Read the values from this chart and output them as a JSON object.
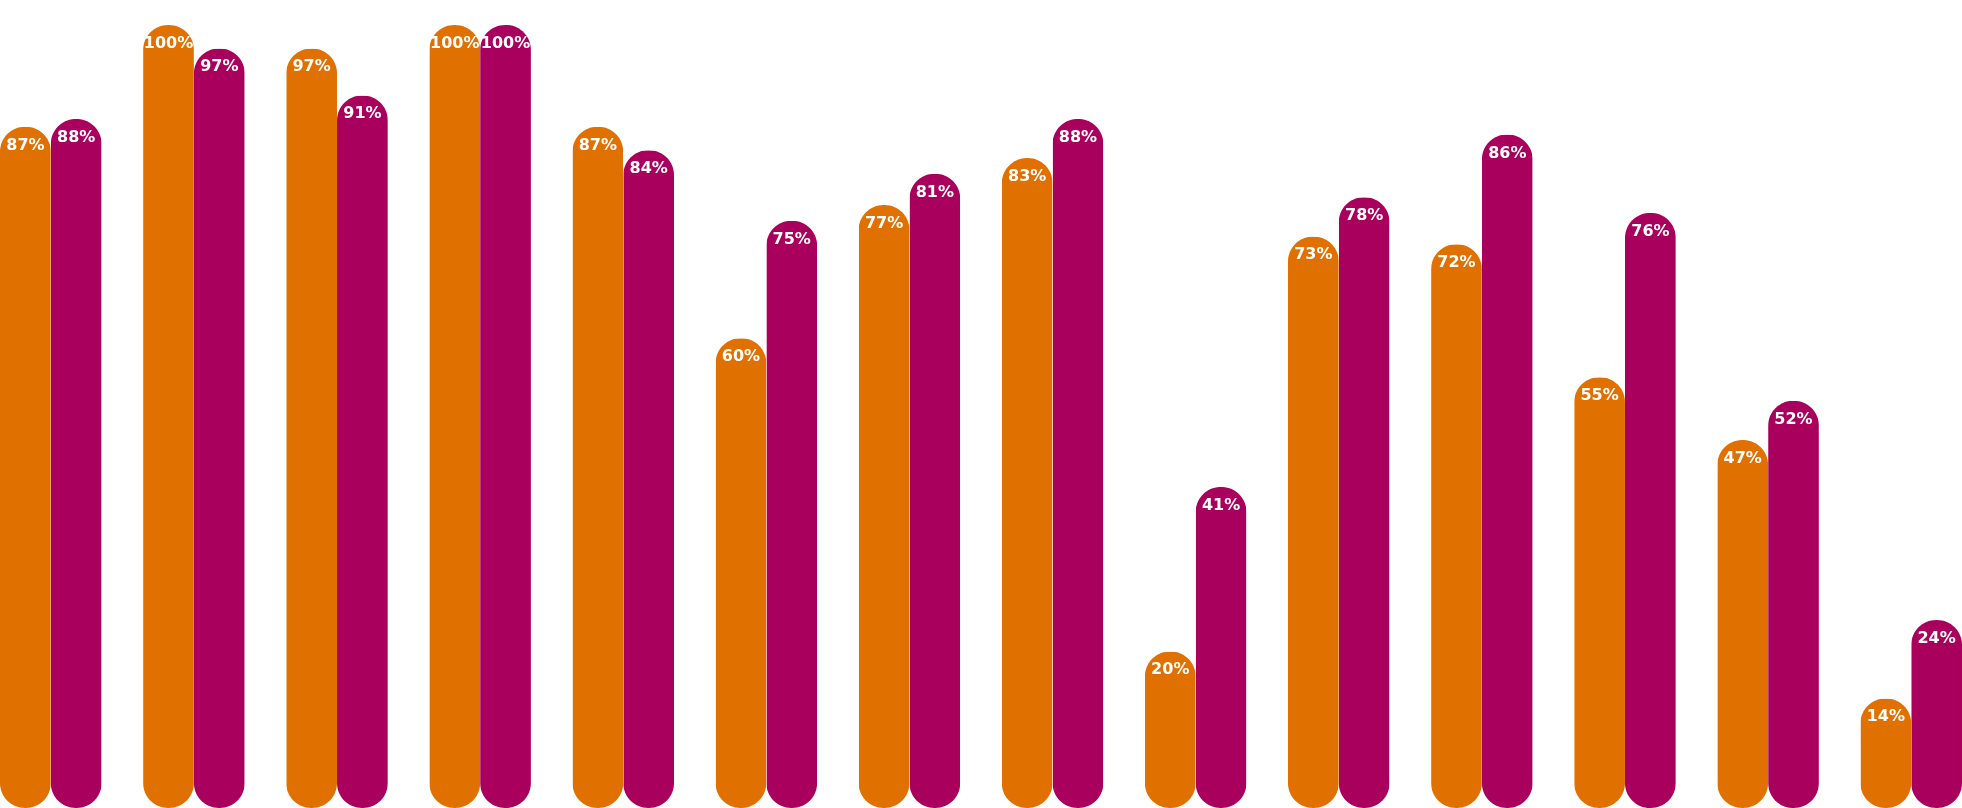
{
  "chart_data": {
    "type": "bar",
    "categories": [
      null,
      null,
      null,
      null,
      null,
      null,
      null,
      null,
      null,
      null,
      null,
      null,
      null,
      null
    ],
    "series": [
      {
        "color": "#e07000",
        "values": [
          87,
          100,
          97,
          100,
          87,
          60,
          77,
          83,
          20,
          73,
          72,
          55,
          47,
          14
        ],
        "value_labels": [
          "87%",
          "100%",
          "97%",
          "100%",
          "87%",
          "60%",
          "77%",
          "83%",
          "20%",
          "73%",
          "72%",
          "55%",
          "47%",
          "14%"
        ]
      },
      {
        "color": "#a8005c",
        "values": [
          88,
          97,
          91,
          100,
          84,
          75,
          81,
          88,
          41,
          78,
          86,
          76,
          52,
          24
        ],
        "value_labels": [
          "88%",
          "97%",
          "91%",
          "100%",
          "84%",
          "75%",
          "81%",
          "88%",
          "41%",
          "78%",
          "86%",
          "76%",
          "52%",
          "24%"
        ]
      }
    ],
    "legend": false
  }
}
